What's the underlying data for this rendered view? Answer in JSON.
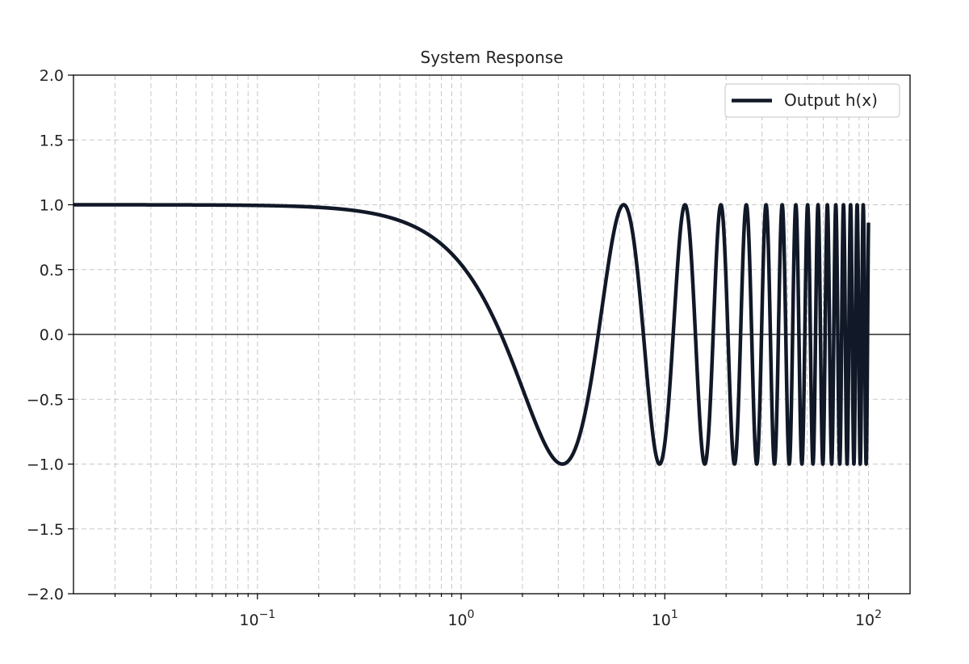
{
  "chart_data": {
    "type": "line",
    "title": "System Response",
    "xlabel": "",
    "ylabel": "",
    "xscale": "log",
    "xlim": [
      0.0125,
      160
    ],
    "ylim": [
      -2.0,
      2.0
    ],
    "grid": true,
    "legend_position": "top-right",
    "x_ticks": [
      {
        "value": 0.1,
        "base": "10",
        "exp": "−1"
      },
      {
        "value": 1,
        "base": "10",
        "exp": "0"
      },
      {
        "value": 10,
        "base": "10",
        "exp": "1"
      },
      {
        "value": 100,
        "base": "10",
        "exp": "2"
      }
    ],
    "y_ticks": [
      {
        "value": 2.0,
        "label": "2.0"
      },
      {
        "value": 1.5,
        "label": "1.5"
      },
      {
        "value": 1.0,
        "label": "1.0"
      },
      {
        "value": 0.5,
        "label": "0.5"
      },
      {
        "value": 0.0,
        "label": "0.0"
      },
      {
        "value": -0.5,
        "label": "−0.5"
      },
      {
        "value": -1.0,
        "label": "−1.0"
      },
      {
        "value": -1.5,
        "label": "−1.5"
      },
      {
        "value": -2.0,
        "label": "−2.0"
      }
    ],
    "series": [
      {
        "name": "Output h(x)",
        "function": "cos(x)",
        "x_range": [
          0.0125,
          100
        ],
        "color": "#111827"
      }
    ]
  }
}
